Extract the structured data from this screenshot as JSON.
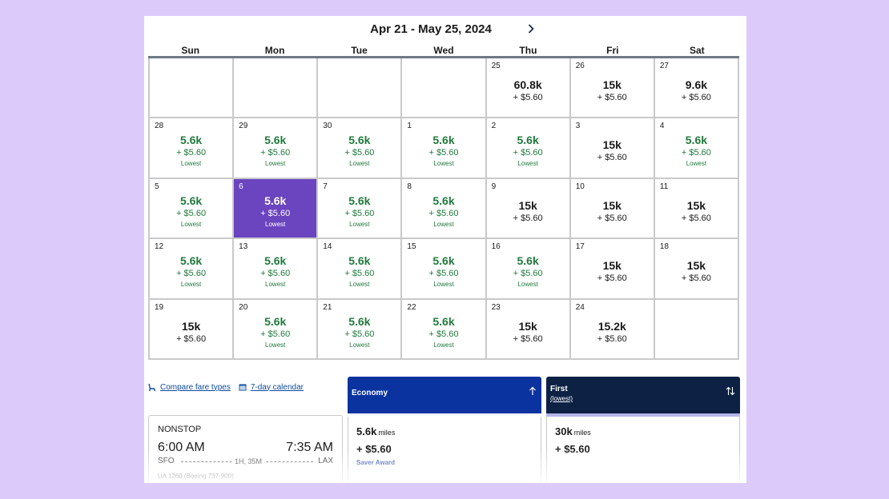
{
  "header": {
    "range_title": "Apr 21 - May 25, 2024"
  },
  "calendar": {
    "weekdays": [
      "Sun",
      "Mon",
      "Tue",
      "Wed",
      "Thu",
      "Fri",
      "Sat"
    ],
    "weeks": [
      [
        {
          "day": "",
          "price": "",
          "fee": "",
          "tag": "",
          "lowest": false,
          "selected": false
        },
        {
          "day": "",
          "price": "",
          "fee": "",
          "tag": "",
          "lowest": false,
          "selected": false
        },
        {
          "day": "",
          "price": "",
          "fee": "",
          "tag": "",
          "lowest": false,
          "selected": false
        },
        {
          "day": "",
          "price": "",
          "fee": "",
          "tag": "",
          "lowest": false,
          "selected": false
        },
        {
          "day": "25",
          "price": "60.8k",
          "fee": "+ $5.60",
          "tag": "",
          "lowest": false,
          "selected": false
        },
        {
          "day": "26",
          "price": "15k",
          "fee": "+ $5.60",
          "tag": "",
          "lowest": false,
          "selected": false
        },
        {
          "day": "27",
          "price": "9.6k",
          "fee": "+ $5.60",
          "tag": "",
          "lowest": false,
          "selected": false
        }
      ],
      [
        {
          "day": "28",
          "price": "5.6k",
          "fee": "+ $5.60",
          "tag": "Lowest",
          "lowest": true,
          "selected": false
        },
        {
          "day": "29",
          "price": "5.6k",
          "fee": "+ $5.60",
          "tag": "Lowest",
          "lowest": true,
          "selected": false
        },
        {
          "day": "30",
          "price": "5.6k",
          "fee": "+ $5.60",
          "tag": "Lowest",
          "lowest": true,
          "selected": false
        },
        {
          "day": "1",
          "price": "5.6k",
          "fee": "+ $5.60",
          "tag": "Lowest",
          "lowest": true,
          "selected": false
        },
        {
          "day": "2",
          "price": "5.6k",
          "fee": "+ $5.60",
          "tag": "Lowest",
          "lowest": true,
          "selected": false
        },
        {
          "day": "3",
          "price": "15k",
          "fee": "+ $5.60",
          "tag": "",
          "lowest": false,
          "selected": false
        },
        {
          "day": "4",
          "price": "5.6k",
          "fee": "+ $5.60",
          "tag": "Lowest",
          "lowest": true,
          "selected": false
        }
      ],
      [
        {
          "day": "5",
          "price": "5.6k",
          "fee": "+ $5.60",
          "tag": "Lowest",
          "lowest": true,
          "selected": false
        },
        {
          "day": "6",
          "price": "5.6k",
          "fee": "+ $5.60",
          "tag": "Lowest",
          "lowest": true,
          "selected": true
        },
        {
          "day": "7",
          "price": "5.6k",
          "fee": "+ $5.60",
          "tag": "Lowest",
          "lowest": true,
          "selected": false
        },
        {
          "day": "8",
          "price": "5.6k",
          "fee": "+ $5.60",
          "tag": "Lowest",
          "lowest": true,
          "selected": false
        },
        {
          "day": "9",
          "price": "15k",
          "fee": "+ $5.60",
          "tag": "",
          "lowest": false,
          "selected": false
        },
        {
          "day": "10",
          "price": "15k",
          "fee": "+ $5.60",
          "tag": "",
          "lowest": false,
          "selected": false
        },
        {
          "day": "11",
          "price": "15k",
          "fee": "+ $5.60",
          "tag": "",
          "lowest": false,
          "selected": false
        }
      ],
      [
        {
          "day": "12",
          "price": "5.6k",
          "fee": "+ $5.60",
          "tag": "Lowest",
          "lowest": true,
          "selected": false
        },
        {
          "day": "13",
          "price": "5.6k",
          "fee": "+ $5.60",
          "tag": "Lowest",
          "lowest": true,
          "selected": false
        },
        {
          "day": "14",
          "price": "5.6k",
          "fee": "+ $5.60",
          "tag": "Lowest",
          "lowest": true,
          "selected": false
        },
        {
          "day": "15",
          "price": "5.6k",
          "fee": "+ $5.60",
          "tag": "Lowest",
          "lowest": true,
          "selected": false
        },
        {
          "day": "16",
          "price": "5.6k",
          "fee": "+ $5.60",
          "tag": "Lowest",
          "lowest": true,
          "selected": false
        },
        {
          "day": "17",
          "price": "15k",
          "fee": "+ $5.60",
          "tag": "",
          "lowest": false,
          "selected": false
        },
        {
          "day": "18",
          "price": "15k",
          "fee": "+ $5.60",
          "tag": "",
          "lowest": false,
          "selected": false
        }
      ],
      [
        {
          "day": "19",
          "price": "15k",
          "fee": "+ $5.60",
          "tag": "",
          "lowest": false,
          "selected": false
        },
        {
          "day": "20",
          "price": "5.6k",
          "fee": "+ $5.60",
          "tag": "Lowest",
          "lowest": true,
          "selected": false
        },
        {
          "day": "21",
          "price": "5.6k",
          "fee": "+ $5.60",
          "tag": "Lowest",
          "lowest": true,
          "selected": false
        },
        {
          "day": "22",
          "price": "5.6k",
          "fee": "+ $5.60",
          "tag": "Lowest",
          "lowest": true,
          "selected": false
        },
        {
          "day": "23",
          "price": "15k",
          "fee": "+ $5.60",
          "tag": "",
          "lowest": false,
          "selected": false
        },
        {
          "day": "24",
          "price": "15.2k",
          "fee": "+ $5.60",
          "tag": "",
          "lowest": false,
          "selected": false
        },
        {
          "day": "",
          "price": "",
          "fee": "",
          "tag": "",
          "lowest": false,
          "selected": false
        }
      ]
    ]
  },
  "links": {
    "compare_label": "Compare fare types",
    "compare_icon": "seat-icon",
    "calendar_label": "7-day calendar",
    "calendar_icon": "calendar-icon"
  },
  "flight": {
    "stops": "NONSTOP",
    "depart_time": "6:00 AM",
    "arrive_time": "7:35 AM",
    "origin": "SFO",
    "destination": "LAX",
    "duration": "1H, 35M",
    "flight_number": "UA 1260 (Boeing 737-900)"
  },
  "fares": {
    "economy": {
      "name": "Economy",
      "sort_icon": "arrow-up-icon",
      "miles": "5.6k",
      "miles_unit": "miles",
      "fee": "+ $5.60",
      "award": "Saver Award"
    },
    "first": {
      "name": "First",
      "sub": "(lowest)",
      "sort_icon": "sort-icon",
      "miles": "30k",
      "miles_unit": "miles",
      "fee": "+ $5.60"
    }
  },
  "colors": {
    "background": "#dccbfa",
    "selected_day": "#6b44c0",
    "lowest_green": "#207a3c",
    "economy_header": "#0b33a0",
    "first_header": "#0c2144",
    "first_band": "#b4b6e6",
    "link_blue": "#0c4a9e"
  }
}
